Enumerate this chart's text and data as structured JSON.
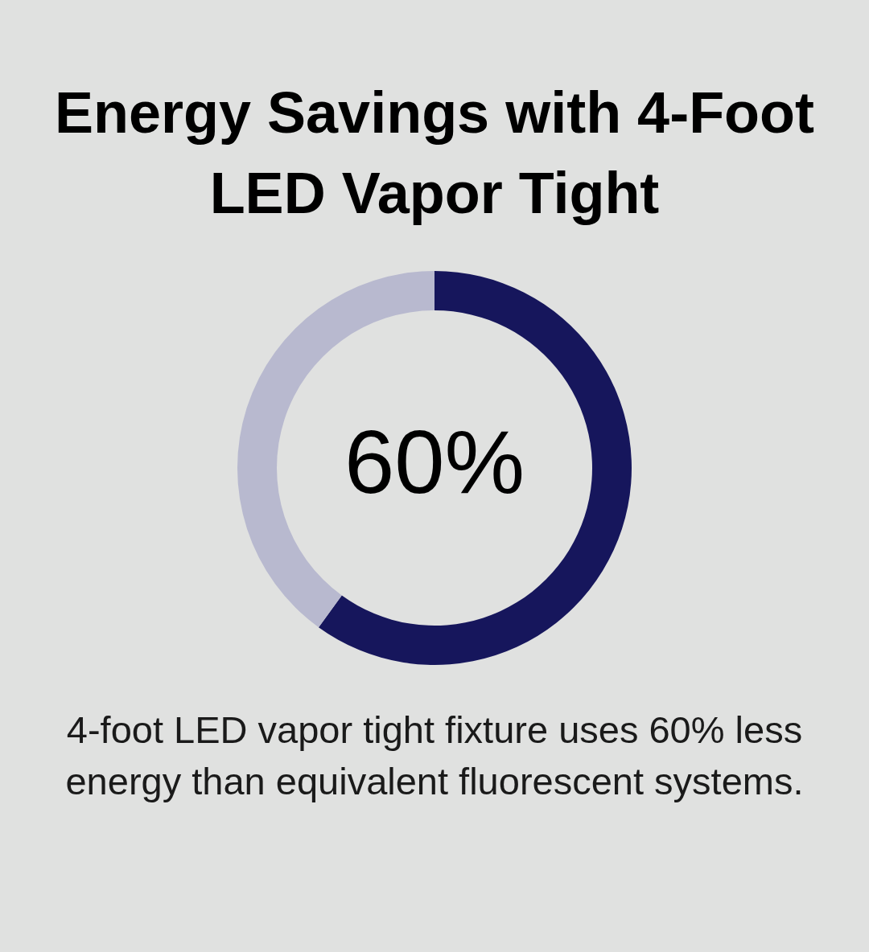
{
  "chart_data": {
    "type": "donut",
    "title": "Energy Savings with 4-Foot LED Vapor Tight",
    "categories": [
      null,
      null
    ],
    "values": [
      60,
      40
    ],
    "colors": [
      "#16165c",
      "#b8b9cf"
    ],
    "value_labels": [
      "60%",
      null
    ],
    "legend": false,
    "annotations": [
      "4-foot LED vapor tight fixture uses 60% less energy than equivalent fluorescent systems."
    ]
  }
}
